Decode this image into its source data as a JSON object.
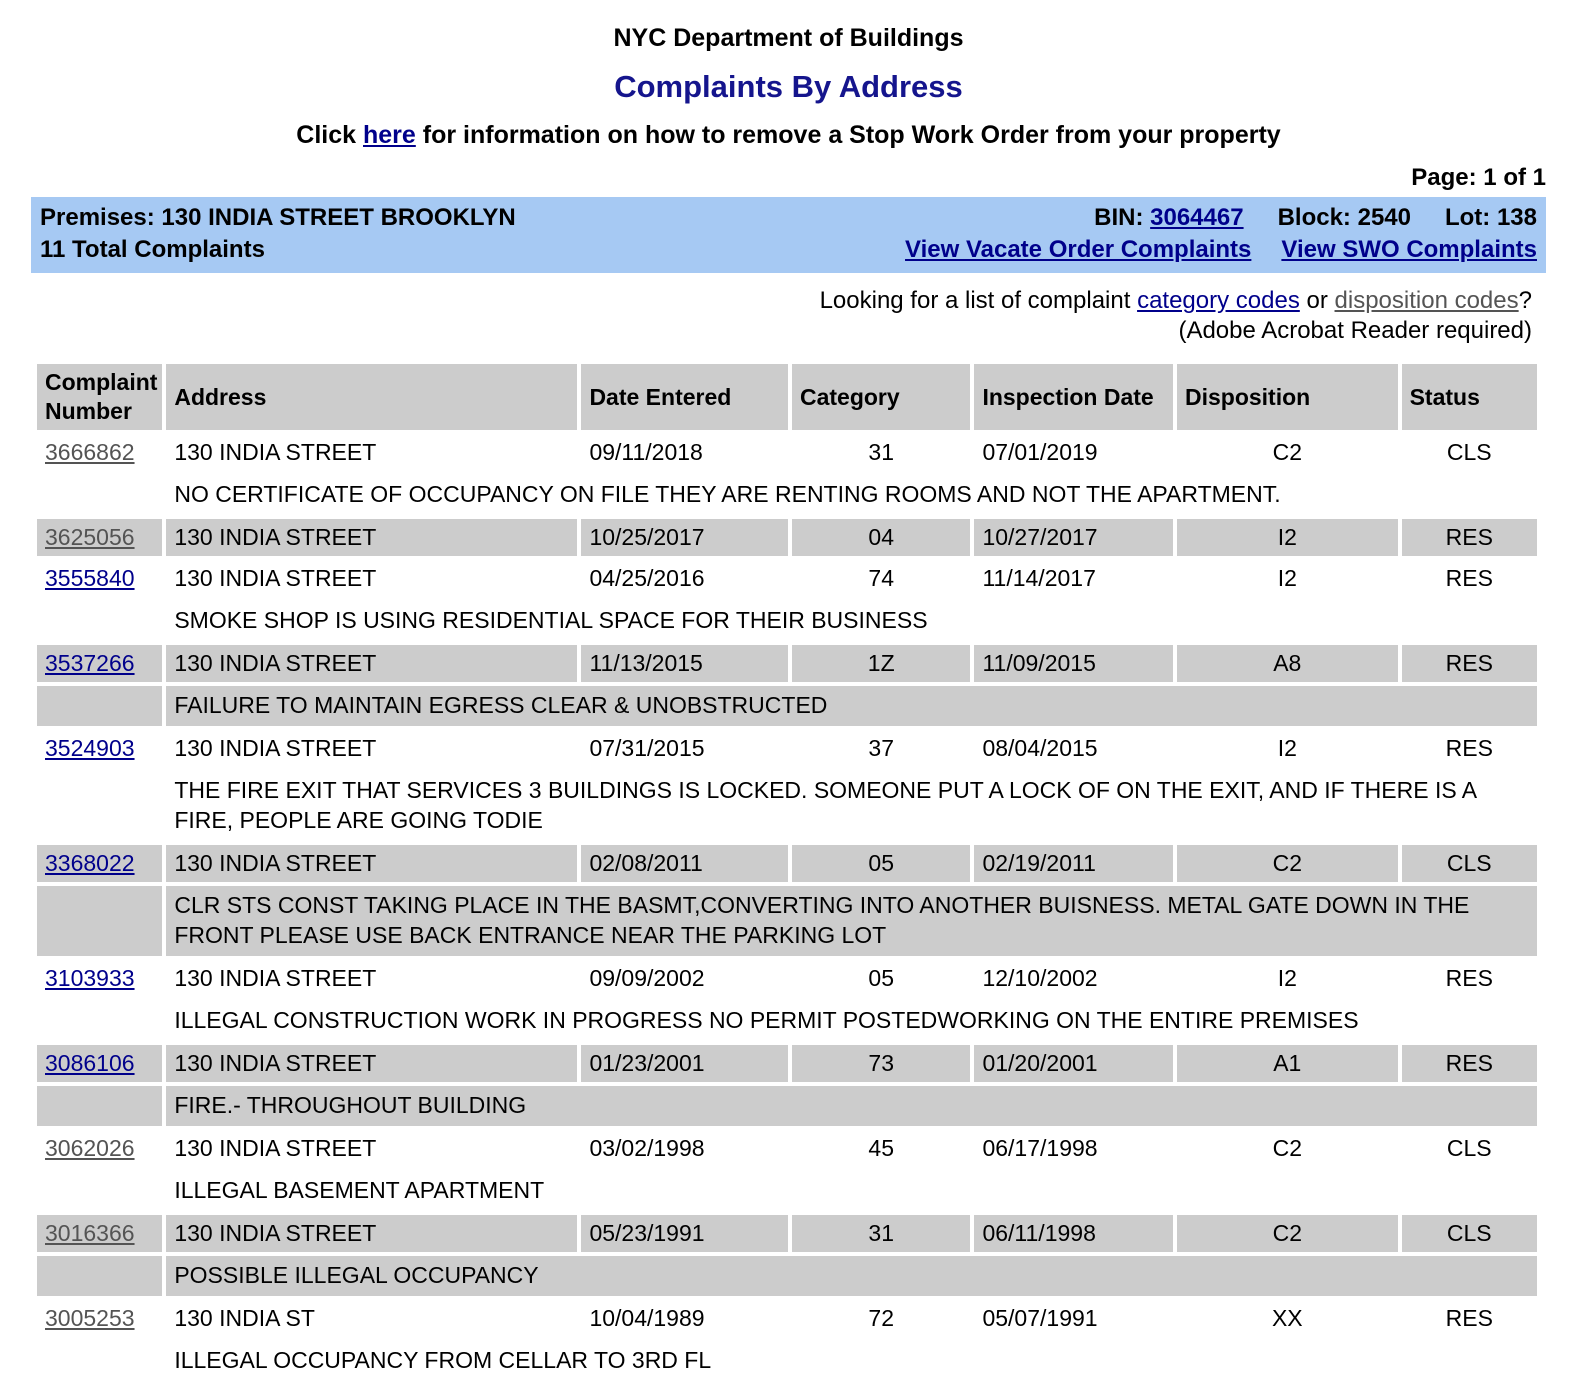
{
  "header": {
    "title1": "NYC Department of Buildings",
    "title2": "Complaints By Address",
    "swo_line_pre": "Click ",
    "swo_link_text": "here",
    "swo_line_post": " for information on how to remove a Stop Work Order from your property",
    "page_indicator": "Page: 1 of 1"
  },
  "premises_bar": {
    "premises": "Premises: 130 INDIA STREET BROOKLYN",
    "bin_label": "BIN: ",
    "bin_value": "3064467",
    "block": "Block: 2540",
    "lot": "Lot: 138",
    "total_complaints": "11 Total Complaints",
    "vacate_link": "View Vacate Order Complaints",
    "swo_link": "View SWO Complaints"
  },
  "lookup": {
    "pre": "Looking for a list of complaint ",
    "category_link": "category codes",
    "mid": " or ",
    "disposition_link": "disposition codes",
    "post": "?",
    "acrobat_note": "(Adobe Acrobat Reader required)"
  },
  "table": {
    "headers": [
      "Complaint Number",
      "Address",
      "Date Entered",
      "Category",
      "Inspection Date",
      "Disposition",
      "Status"
    ],
    "rows": [
      {
        "number": "3666862",
        "visited": true,
        "shaded": false,
        "address": "130 INDIA STREET",
        "date_entered": "09/11/2018",
        "category": "31",
        "inspection_date": "07/01/2019",
        "disposition": "C2",
        "status": "CLS",
        "description": "NO CERTIFICATE OF OCCUPANCY ON FILE THEY ARE RENTING ROOMS AND NOT THE APARTMENT."
      },
      {
        "number": "3625056",
        "visited": true,
        "shaded": true,
        "address": "130 INDIA STREET",
        "date_entered": "10/25/2017",
        "category": "04",
        "inspection_date": "10/27/2017",
        "disposition": "I2",
        "status": "RES",
        "description": null
      },
      {
        "number": "3555840",
        "visited": false,
        "shaded": false,
        "address": "130 INDIA STREET",
        "date_entered": "04/25/2016",
        "category": "74",
        "inspection_date": "11/14/2017",
        "disposition": "I2",
        "status": "RES",
        "description": "SMOKE SHOP IS USING RESIDENTIAL SPACE FOR THEIR BUSINESS"
      },
      {
        "number": "3537266",
        "visited": false,
        "shaded": true,
        "address": "130 INDIA STREET",
        "date_entered": "11/13/2015",
        "category": "1Z",
        "inspection_date": "11/09/2015",
        "disposition": "A8",
        "status": "RES",
        "description": "FAILURE TO MAINTAIN EGRESS CLEAR & UNOBSTRUCTED"
      },
      {
        "number": "3524903",
        "visited": false,
        "shaded": false,
        "address": "130 INDIA STREET",
        "date_entered": "07/31/2015",
        "category": "37",
        "inspection_date": "08/04/2015",
        "disposition": "I2",
        "status": "RES",
        "description": "THE FIRE EXIT THAT SERVICES 3 BUILDINGS IS LOCKED. SOMEONE PUT A LOCK OF ON THE EXIT, AND IF THERE IS A FIRE, PEOPLE ARE GOING TODIE"
      },
      {
        "number": "3368022",
        "visited": false,
        "shaded": true,
        "address": "130 INDIA STREET",
        "date_entered": "02/08/2011",
        "category": "05",
        "inspection_date": "02/19/2011",
        "disposition": "C2",
        "status": "CLS",
        "description": "CLR STS CONST TAKING PLACE IN THE BASMT,CONVERTING INTO ANOTHER BUISNESS. METAL GATE DOWN IN THE FRONT PLEASE USE BACK ENTRANCE NEAR THE PARKING LOT"
      },
      {
        "number": "3103933",
        "visited": false,
        "shaded": false,
        "address": "130 INDIA STREET",
        "date_entered": "09/09/2002",
        "category": "05",
        "inspection_date": "12/10/2002",
        "disposition": "I2",
        "status": "RES",
        "description": "ILLEGAL CONSTRUCTION WORK IN PROGRESS NO PERMIT POSTEDWORKING ON THE ENTIRE PREMISES"
      },
      {
        "number": "3086106",
        "visited": false,
        "shaded": true,
        "address": "130 INDIA STREET",
        "date_entered": "01/23/2001",
        "category": "73",
        "inspection_date": "01/20/2001",
        "disposition": "A1",
        "status": "RES",
        "description": "FIRE.- THROUGHOUT BUILDING"
      },
      {
        "number": "3062026",
        "visited": true,
        "shaded": false,
        "address": "130 INDIA STREET",
        "date_entered": "03/02/1998",
        "category": "45",
        "inspection_date": "06/17/1998",
        "disposition": "C2",
        "status": "CLS",
        "description": "ILLEGAL BASEMENT APARTMENT"
      },
      {
        "number": "3016366",
        "visited": true,
        "shaded": true,
        "address": "130 INDIA STREET",
        "date_entered": "05/23/1991",
        "category": "31",
        "inspection_date": "06/11/1998",
        "disposition": "C2",
        "status": "CLS",
        "description": "POSSIBLE ILLEGAL OCCUPANCY"
      },
      {
        "number": "3005253",
        "visited": true,
        "shaded": false,
        "address": "130 INDIA ST",
        "date_entered": "10/04/1989",
        "category": "72",
        "inspection_date": "05/07/1991",
        "disposition": "XX",
        "status": "RES",
        "description": "ILLEGAL OCCUPANCY FROM CELLAR TO 3RD FL"
      }
    ]
  },
  "colors": {
    "title_navy": "#15158D",
    "link_blue": "#00008B",
    "link_visited_gray": "#545454",
    "premises_bar_blue": "#A6C9F3",
    "cell_gray": "#CCCCCC"
  }
}
